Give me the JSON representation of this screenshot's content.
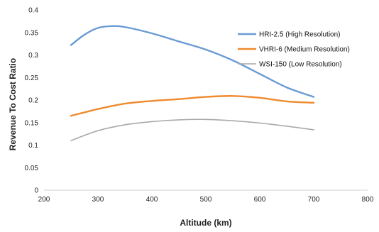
{
  "chart_data": {
    "type": "line",
    "title": "",
    "xlabel": "Altitude (km)",
    "ylabel": "Revenue To Cost Ratio",
    "xlim": [
      200,
      800
    ],
    "ylim": [
      0,
      0.4
    ],
    "x_ticks": [
      "200",
      "300",
      "400",
      "500",
      "600",
      "700",
      "800"
    ],
    "y_ticks": [
      "0",
      "0.05",
      "0.1",
      "0.15",
      "0.2",
      "0.25",
      "0.3",
      "0.35",
      "0.4"
    ],
    "grid": false,
    "legend_position": "top-right",
    "series": [
      {
        "name": "HRI-2.5 (High Resolution)",
        "color": "#6a9bd4",
        "x": [
          250,
          275,
          300,
          325,
          350,
          400,
          450,
          500,
          550,
          600,
          650,
          700
        ],
        "y": [
          0.322,
          0.345,
          0.36,
          0.364,
          0.362,
          0.348,
          0.33,
          0.312,
          0.288,
          0.258,
          0.228,
          0.207
        ]
      },
      {
        "name": "VHRI-6 (Medium Resolution)",
        "color": "#ef8a2e",
        "x": [
          250,
          300,
          350,
          400,
          450,
          500,
          550,
          600,
          650,
          700
        ],
        "y": [
          0.165,
          0.18,
          0.192,
          0.198,
          0.202,
          0.207,
          0.209,
          0.205,
          0.197,
          0.194
        ]
      },
      {
        "name": "WSI-150 (Low Resolution)",
        "color": "#a9a9a9",
        "x": [
          250,
          300,
          350,
          400,
          450,
          500,
          550,
          600,
          650,
          700
        ],
        "y": [
          0.11,
          0.132,
          0.145,
          0.152,
          0.156,
          0.157,
          0.154,
          0.149,
          0.142,
          0.134
        ]
      }
    ]
  }
}
